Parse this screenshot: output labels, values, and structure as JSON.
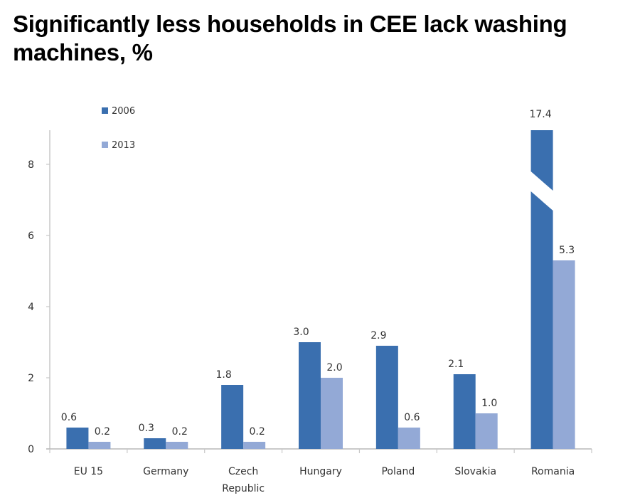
{
  "title": "Significantly less households in CEE lack washing machines, %",
  "chart_data": {
    "type": "bar",
    "title": "Significantly less households in CEE lack washing machines, %",
    "xlabel": "",
    "ylabel": "",
    "ylim": [
      0,
      9
    ],
    "yticks": [
      0,
      2,
      4,
      6,
      8
    ],
    "grid": false,
    "legend_position": "top-left",
    "categories": [
      "EU 15",
      "Germany",
      "Czech Republic",
      "Hungary",
      "Poland",
      "Slovakia",
      "Romania"
    ],
    "category_lines": [
      [
        "EU 15"
      ],
      [
        "Germany"
      ],
      [
        "Czech",
        "Republic"
      ],
      [
        "Hungary"
      ],
      [
        "Poland"
      ],
      [
        "Slovakia"
      ],
      [
        "Romania"
      ]
    ],
    "series": [
      {
        "name": "2006",
        "color": "#3A6FAF",
        "values": [
          0.6,
          0.3,
          1.8,
          3.0,
          2.9,
          2.1,
          17.4
        ],
        "labels": [
          "0.6",
          "0.3",
          "1.8",
          "3.0",
          "2.9",
          "2.1",
          "17.4"
        ]
      },
      {
        "name": "2013",
        "color": "#93A9D6",
        "values": [
          0.2,
          0.2,
          0.2,
          2.0,
          0.6,
          1.0,
          5.3
        ],
        "labels": [
          "0.2",
          "0.2",
          "0.2",
          "2.0",
          "0.6",
          "1.0",
          "5.3"
        ]
      }
    ],
    "axis_break": {
      "series": "2006",
      "category": "Romania"
    }
  }
}
